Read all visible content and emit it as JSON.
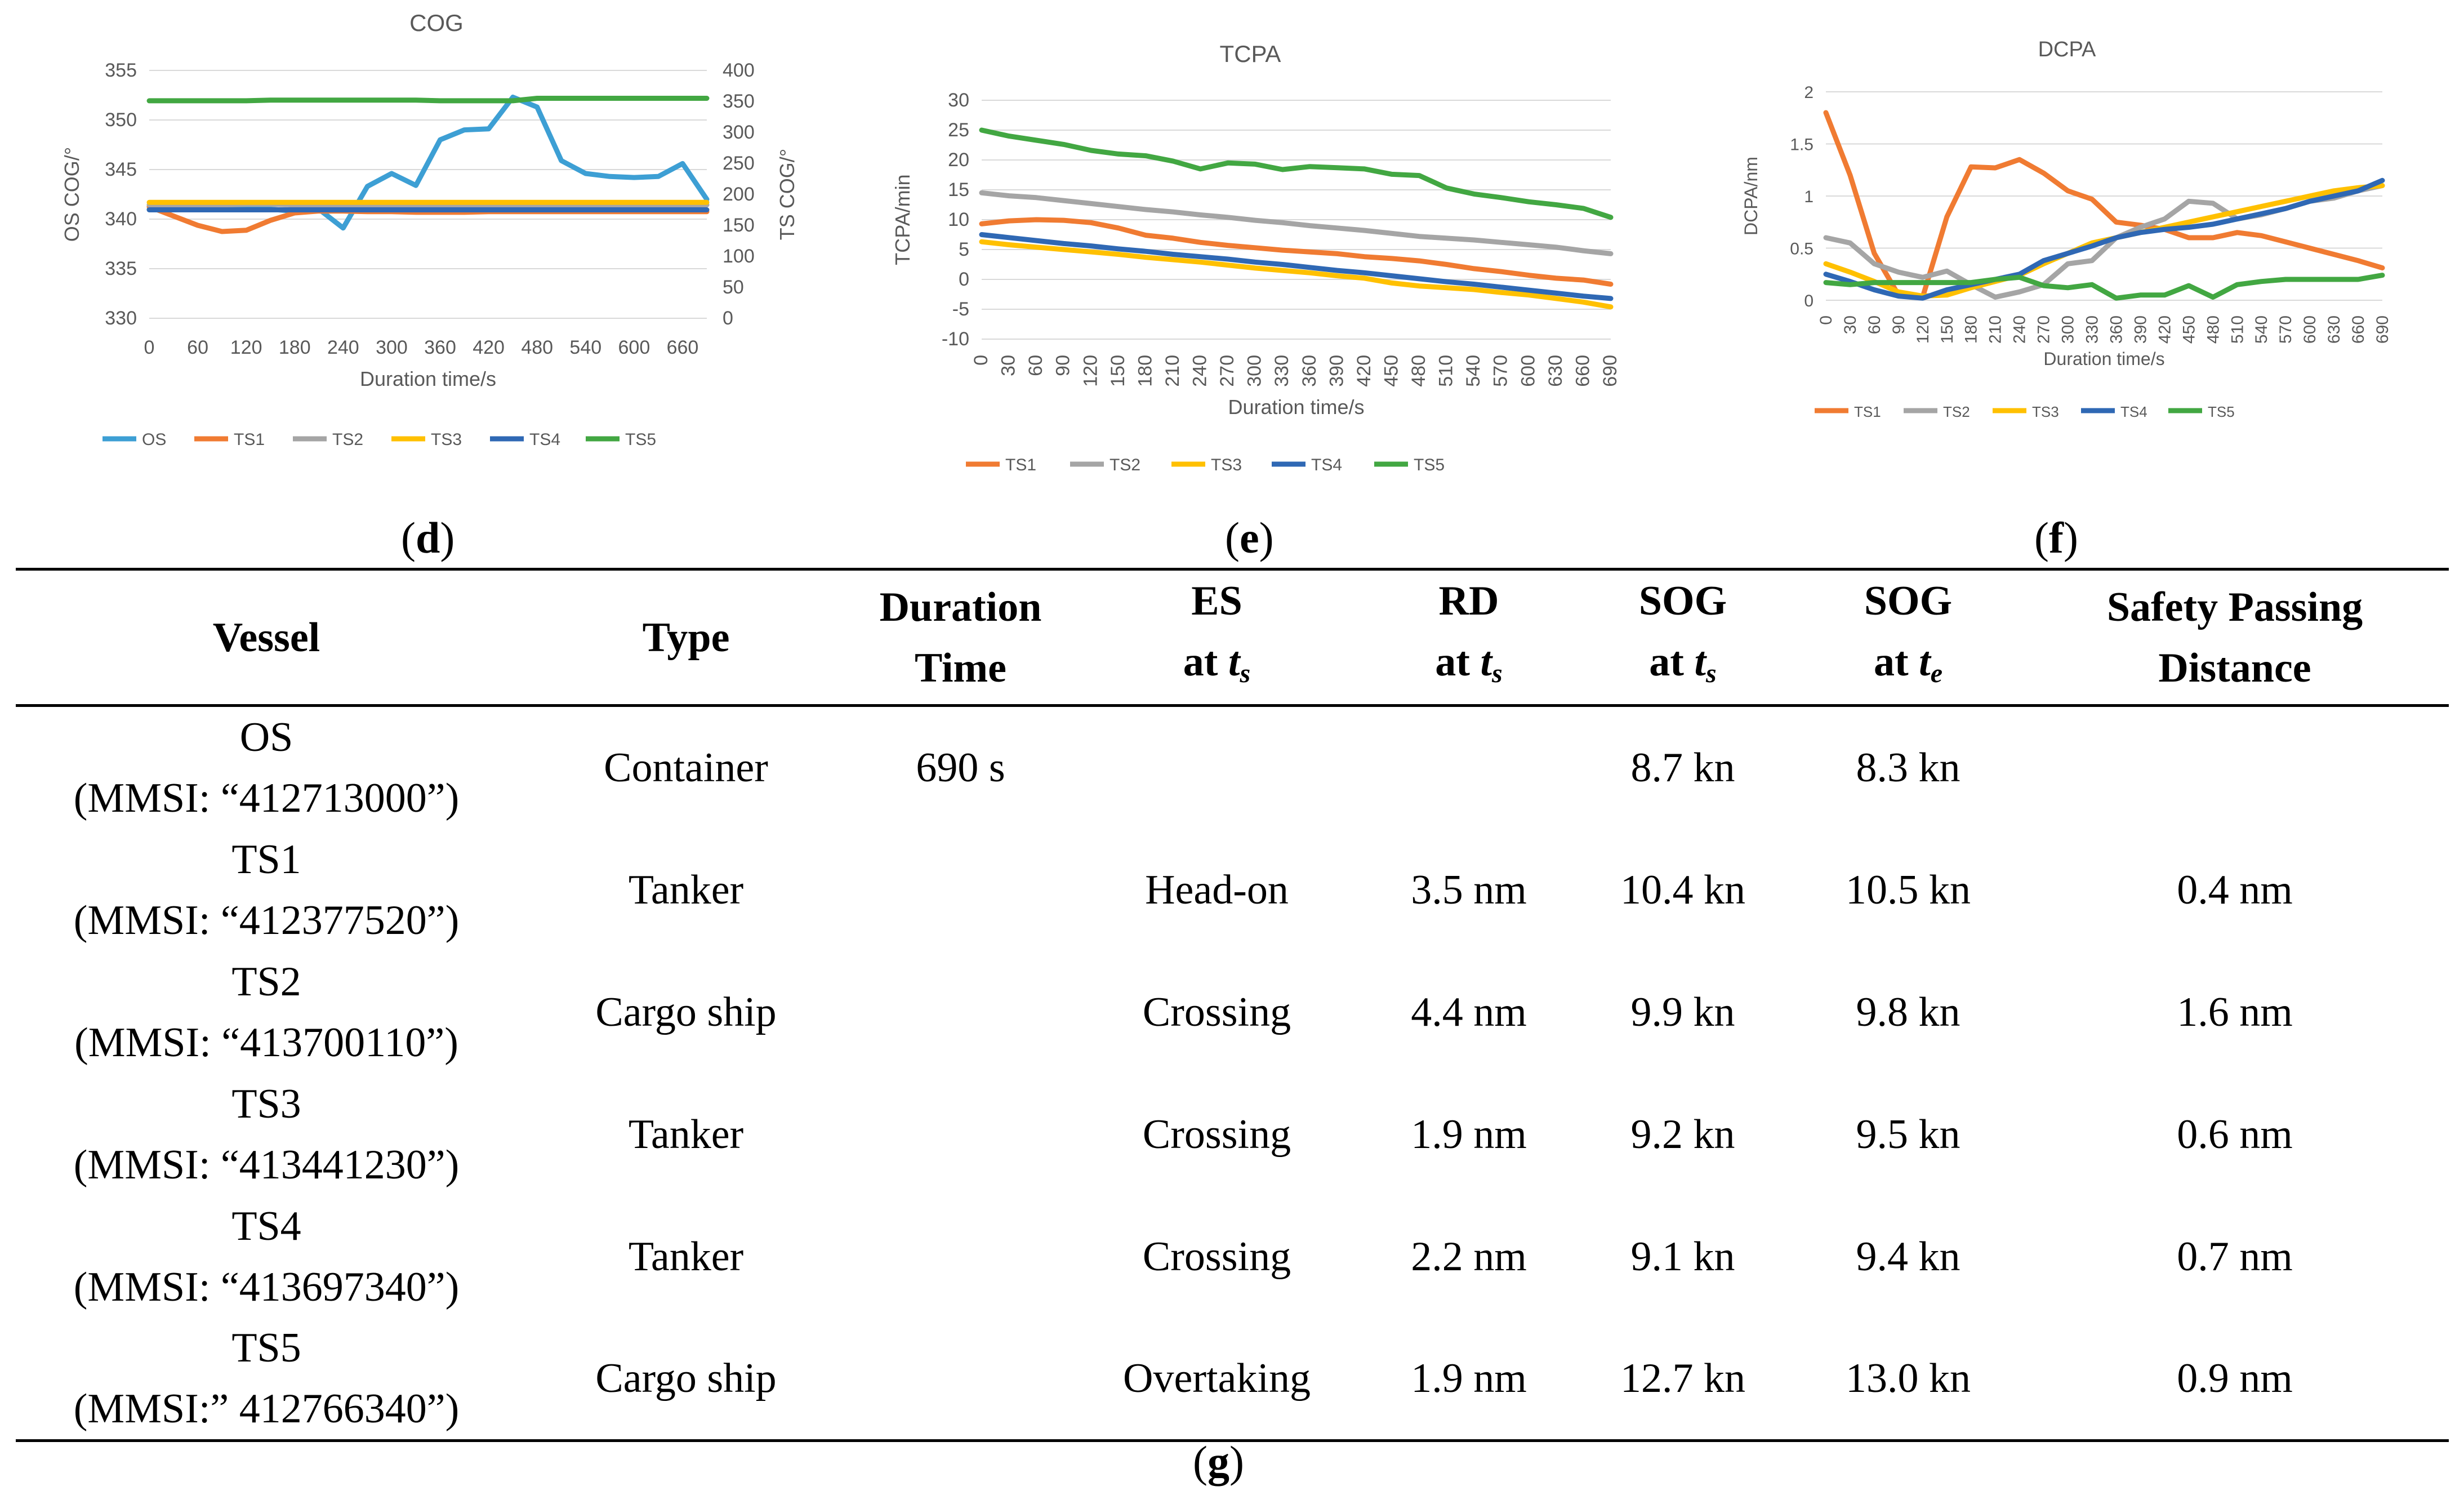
{
  "chart_data": [
    {
      "id": "cog",
      "type": "line",
      "title": "COG",
      "xlabel": "Duration time/s",
      "ylabel": "OS COG/°",
      "ylabel_right": "TS COG/°",
      "x_ticks": [
        "0",
        "60",
        "120",
        "180",
        "240",
        "300",
        "360",
        "420",
        "480",
        "540",
        "600",
        "660"
      ],
      "xlim": [
        0,
        690
      ],
      "ylim": [
        330,
        355
      ],
      "ylim_right": [
        0,
        400
      ],
      "y_ticks": [
        330,
        335,
        340,
        345,
        350,
        355
      ],
      "y_ticks_right": [
        0,
        50,
        100,
        150,
        200,
        250,
        300,
        350,
        400
      ],
      "x": [
        0,
        30,
        60,
        90,
        120,
        150,
        180,
        210,
        240,
        270,
        300,
        330,
        360,
        390,
        420,
        450,
        480,
        510,
        540,
        570,
        600,
        630,
        660,
        690
      ],
      "series": [
        {
          "name": "OS",
          "color": "#3d9fd4",
          "axis": "left",
          "values": [
            341,
            341,
            341,
            341,
            341,
            341,
            340.8,
            341,
            339.1,
            343.3,
            344.6,
            343.4,
            348,
            349,
            349.1,
            352.3,
            351.3,
            345.9,
            344.6,
            344.3,
            344.2,
            344.3,
            345.6,
            342
          ]
        },
        {
          "name": "TS1",
          "color": "#f07b32",
          "axis": "right",
          "values": [
            180,
            165,
            150,
            140,
            142,
            158,
            170,
            173,
            173,
            172,
            172,
            171,
            171,
            171,
            172,
            172,
            172,
            172,
            172,
            172,
            172,
            172,
            172,
            172
          ]
        },
        {
          "name": "TS2",
          "color": "#a5a5a5",
          "axis": "right",
          "values": [
            183,
            183,
            183,
            183,
            184,
            184,
            183,
            183,
            183,
            183,
            183,
            183,
            183,
            183,
            183,
            183,
            183,
            183,
            183,
            183,
            183,
            183,
            183,
            183
          ]
        },
        {
          "name": "TS3",
          "color": "#ffc000",
          "axis": "right",
          "values": [
            187,
            187,
            187,
            187,
            187,
            187,
            187,
            187,
            187,
            187,
            187,
            187,
            187,
            187,
            187,
            187,
            187,
            187,
            187,
            187,
            187,
            187,
            187,
            187
          ]
        },
        {
          "name": "TS4",
          "color": "#2f68b4",
          "axis": "right",
          "values": [
            175,
            175,
            175,
            175,
            175,
            175,
            175,
            175,
            175,
            175,
            175,
            175,
            175,
            175,
            175,
            175,
            175,
            175,
            175,
            175,
            175,
            175,
            175,
            175
          ]
        },
        {
          "name": "TS5",
          "color": "#42a742",
          "axis": "right",
          "values": [
            351,
            351,
            351,
            351,
            351,
            352,
            352,
            352,
            352,
            352,
            352,
            352,
            351,
            351,
            351,
            351,
            355,
            355,
            355,
            355,
            355,
            355,
            355,
            355
          ]
        }
      ],
      "legend": [
        "OS",
        "TS1",
        "TS2",
        "TS3",
        "TS4",
        "TS5"
      ]
    },
    {
      "id": "tcpa",
      "type": "line",
      "title": "TCPA",
      "xlabel": "Duration time/s",
      "ylabel": "TCPA/min",
      "x_ticks": [
        "0",
        "30",
        "60",
        "90",
        "120",
        "150",
        "180",
        "210",
        "240",
        "270",
        "300",
        "330",
        "360",
        "390",
        "420",
        "450",
        "480",
        "510",
        "540",
        "570",
        "600",
        "630",
        "660",
        "690"
      ],
      "xlim": [
        0,
        690
      ],
      "ylim": [
        -10,
        30
      ],
      "y_ticks": [
        -10,
        -5,
        0,
        5,
        10,
        15,
        20,
        25,
        30
      ],
      "x": [
        0,
        30,
        60,
        90,
        120,
        150,
        180,
        210,
        240,
        270,
        300,
        330,
        360,
        390,
        420,
        450,
        480,
        510,
        540,
        570,
        600,
        630,
        660,
        690
      ],
      "series": [
        {
          "name": "TS1",
          "color": "#f07b32",
          "values": [
            9.3,
            9.8,
            10,
            9.9,
            9.5,
            8.6,
            7.4,
            6.9,
            6.2,
            5.7,
            5.3,
            4.9,
            4.6,
            4.3,
            3.8,
            3.5,
            3.1,
            2.5,
            1.8,
            1.3,
            0.7,
            0.2,
            -0.1,
            -0.8
          ]
        },
        {
          "name": "TS2",
          "color": "#a5a5a5",
          "values": [
            14.5,
            14,
            13.7,
            13.2,
            12.7,
            12.2,
            11.7,
            11.3,
            10.8,
            10.4,
            9.9,
            9.5,
            9.0,
            8.6,
            8.2,
            7.7,
            7.2,
            6.9,
            6.6,
            6.2,
            5.8,
            5.4,
            4.8,
            4.3
          ]
        },
        {
          "name": "TS3",
          "color": "#ffc000",
          "values": [
            6.3,
            5.8,
            5.4,
            5.0,
            4.6,
            4.2,
            3.7,
            3.3,
            2.9,
            2.4,
            1.9,
            1.5,
            1.1,
            0.6,
            0.2,
            -0.6,
            -1.1,
            -1.4,
            -1.7,
            -2.2,
            -2.6,
            -3.2,
            -3.8,
            -4.6
          ]
        },
        {
          "name": "TS4",
          "color": "#2f68b4",
          "values": [
            7.5,
            7,
            6.5,
            6,
            5.6,
            5.1,
            4.7,
            4.2,
            3.8,
            3.4,
            2.9,
            2.5,
            2.0,
            1.5,
            1.1,
            0.6,
            0.1,
            -0.4,
            -0.8,
            -1.3,
            -1.8,
            -2.3,
            -2.8,
            -3.2
          ]
        },
        {
          "name": "TS5",
          "color": "#42a742",
          "values": [
            25,
            24,
            23.3,
            22.6,
            21.6,
            21.0,
            20.7,
            19.8,
            18.5,
            19.5,
            19.3,
            18.4,
            18.9,
            18.7,
            18.5,
            17.6,
            17.4,
            15.3,
            14.3,
            13.7,
            13.0,
            12.5,
            11.9,
            10.4
          ]
        }
      ],
      "legend": [
        "TS1",
        "TS2",
        "TS3",
        "TS4",
        "TS5"
      ]
    },
    {
      "id": "dcpa",
      "type": "line",
      "title": "DCPA",
      "xlabel": "Duration time/s",
      "ylabel": "DCPA/nm",
      "x_ticks": [
        "0",
        "30",
        "60",
        "90",
        "120",
        "150",
        "180",
        "210",
        "240",
        "270",
        "300",
        "330",
        "360",
        "390",
        "420",
        "450",
        "480",
        "510",
        "540",
        "570",
        "600",
        "630",
        "660",
        "690"
      ],
      "xlim": [
        0,
        690
      ],
      "ylim": [
        0,
        2
      ],
      "y_ticks": [
        0,
        0.5,
        1,
        1.5,
        2
      ],
      "x": [
        0,
        30,
        60,
        90,
        120,
        150,
        180,
        210,
        240,
        270,
        300,
        330,
        360,
        390,
        420,
        450,
        480,
        510,
        540,
        570,
        600,
        630,
        660,
        690
      ],
      "series": [
        {
          "name": "TS1",
          "color": "#f07b32",
          "values": [
            1.8,
            1.2,
            0.45,
            0.05,
            0.03,
            0.8,
            1.28,
            1.27,
            1.35,
            1.22,
            1.05,
            0.97,
            0.75,
            0.72,
            0.68,
            0.6,
            0.6,
            0.65,
            0.62,
            0.56,
            0.5,
            0.44,
            0.38,
            0.31
          ]
        },
        {
          "name": "TS2",
          "color": "#a5a5a5",
          "values": [
            0.6,
            0.55,
            0.35,
            0.27,
            0.22,
            0.28,
            0.15,
            0.03,
            0.08,
            0.15,
            0.35,
            0.38,
            0.6,
            0.7,
            0.78,
            0.95,
            0.93,
            0.78,
            0.82,
            0.88,
            0.95,
            0.98,
            1.05,
            1.1
          ]
        },
        {
          "name": "TS3",
          "color": "#ffc000",
          "values": [
            0.35,
            0.27,
            0.18,
            0.08,
            0.04,
            0.05,
            0.12,
            0.18,
            0.24,
            0.35,
            0.45,
            0.55,
            0.6,
            0.65,
            0.7,
            0.75,
            0.8,
            0.85,
            0.9,
            0.95,
            1.0,
            1.05,
            1.08,
            1.1
          ]
        },
        {
          "name": "TS4",
          "color": "#2f68b4",
          "values": [
            0.25,
            0.18,
            0.1,
            0.04,
            0.02,
            0.1,
            0.15,
            0.2,
            0.25,
            0.38,
            0.45,
            0.52,
            0.6,
            0.65,
            0.68,
            0.7,
            0.73,
            0.78,
            0.83,
            0.88,
            0.95,
            1.0,
            1.05,
            1.15
          ]
        },
        {
          "name": "TS5",
          "color": "#42a742",
          "values": [
            0.17,
            0.15,
            0.17,
            0.17,
            0.17,
            0.17,
            0.17,
            0.2,
            0.22,
            0.14,
            0.12,
            0.15,
            0.02,
            0.05,
            0.05,
            0.14,
            0.03,
            0.15,
            0.18,
            0.2,
            0.2,
            0.2,
            0.2,
            0.24
          ]
        }
      ],
      "legend": [
        "TS1",
        "TS2",
        "TS3",
        "TS4",
        "TS5"
      ]
    }
  ],
  "panel_labels": {
    "d": "d",
    "e": "e",
    "f": "f",
    "g": "g"
  },
  "table": {
    "headers": {
      "vessel": "Vessel",
      "type": "Type",
      "duration_1": "Duration",
      "duration_2": "Time",
      "es_1": "ES",
      "rd_1": "RD",
      "sog_s_1": "SOG",
      "sog_e_1": "SOG",
      "at": "at",
      "t": "t",
      "sub_s": "s",
      "sub_e": "e",
      "spd_1": "Safety Passing",
      "spd_2": "Distance"
    },
    "rows": [
      {
        "vessel": "OS",
        "mmsi": "(MMSI: “412713000”)",
        "type": "Container",
        "duration": "690 s",
        "es": "",
        "rd": "",
        "sog_s": "8.7 kn",
        "sog_e": "8.3 kn",
        "spd": ""
      },
      {
        "vessel": "TS1",
        "mmsi": "(MMSI: “412377520”)",
        "type": "Tanker",
        "duration": "",
        "es": "Head-on",
        "rd": "3.5 nm",
        "sog_s": "10.4 kn",
        "sog_e": "10.5 kn",
        "spd": "0.4 nm"
      },
      {
        "vessel": "TS2",
        "mmsi": "(MMSI: “413700110”)",
        "type": "Cargo ship",
        "duration": "",
        "es": "Crossing",
        "rd": "4.4 nm",
        "sog_s": "9.9 kn",
        "sog_e": "9.8 kn",
        "spd": "1.6 nm"
      },
      {
        "vessel": "TS3",
        "mmsi": "(MMSI: “413441230”)",
        "type": "Tanker",
        "duration": "",
        "es": "Crossing",
        "rd": "1.9 nm",
        "sog_s": "9.2 kn",
        "sog_e": "9.5 kn",
        "spd": "0.6 nm"
      },
      {
        "vessel": "TS4",
        "mmsi": "(MMSI: “413697340”)",
        "type": "Tanker",
        "duration": "",
        "es": "Crossing",
        "rd": "2.2 nm",
        "sog_s": "9.1 kn",
        "sog_e": "9.4 kn",
        "spd": "0.7 nm"
      },
      {
        "vessel": "TS5",
        "mmsi": "(MMSI:” 412766340”)",
        "type": "Cargo ship",
        "duration": "",
        "es": "Overtaking",
        "rd": "1.9 nm",
        "sog_s": "12.7 kn",
        "sog_e": "13.0 kn",
        "spd": "0.9 nm"
      }
    ]
  }
}
